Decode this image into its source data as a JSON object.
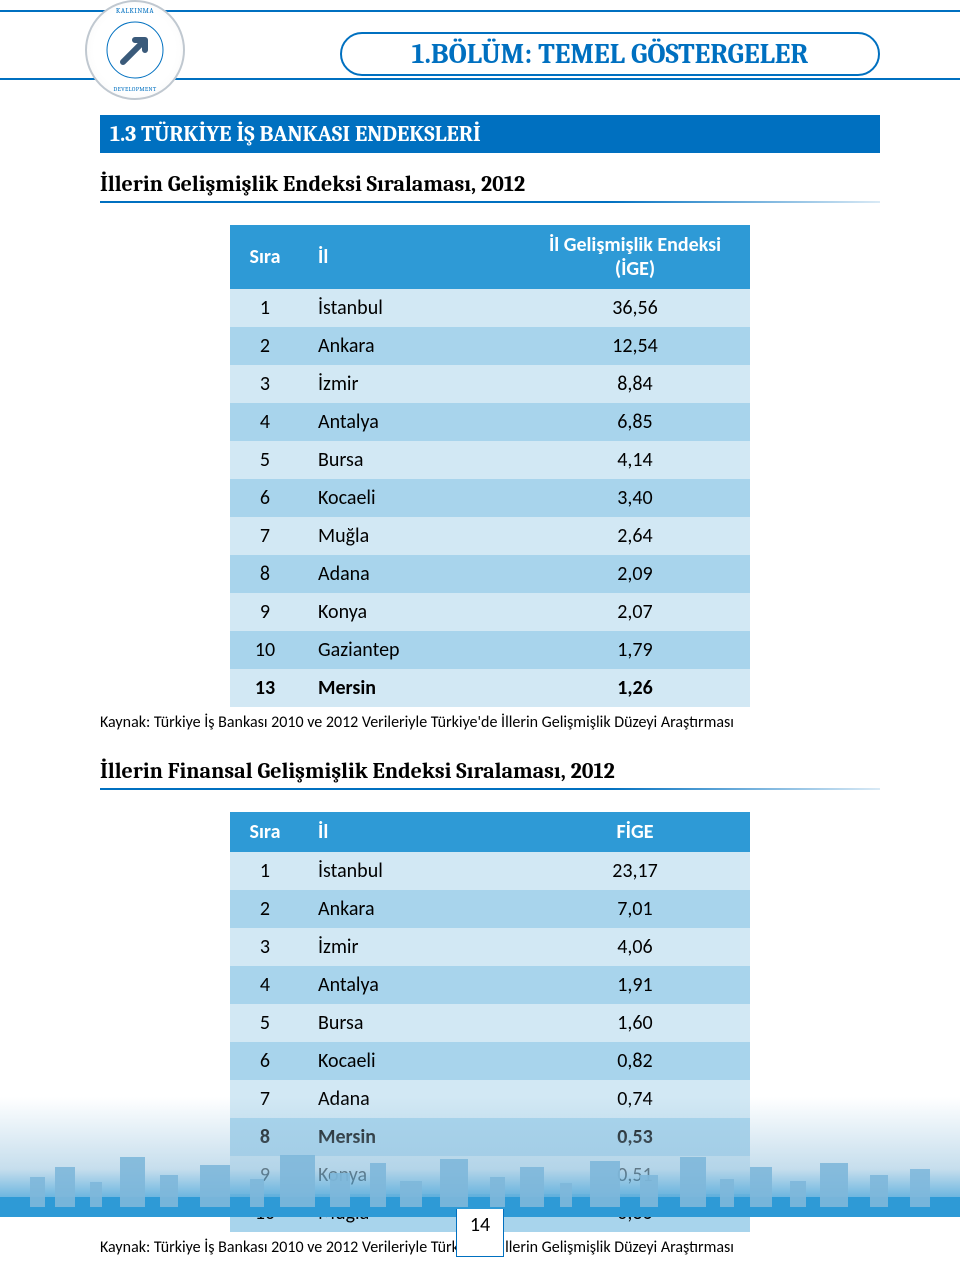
{
  "chapter_title": "1.BÖLÜM: TEMEL GÖSTERGELER",
  "section_title": "1.3 TÜRKİYE İŞ BANKASI ENDEKSLERİ",
  "table1": {
    "heading": "İllerin Gelişmişlik Endeksi Sıralaması, 2012",
    "columns": [
      "Sıra",
      "İl",
      "İl Gelişmişlik Endeksi (İGE)"
    ],
    "rows": [
      {
        "sira": "1",
        "il": "İstanbul",
        "val": "36,56",
        "bold": false
      },
      {
        "sira": "2",
        "il": "Ankara",
        "val": "12,54",
        "bold": false
      },
      {
        "sira": "3",
        "il": "İzmir",
        "val": "8,84",
        "bold": false
      },
      {
        "sira": "4",
        "il": "Antalya",
        "val": "6,85",
        "bold": false
      },
      {
        "sira": "5",
        "il": "Bursa",
        "val": "4,14",
        "bold": false
      },
      {
        "sira": "6",
        "il": "Kocaeli",
        "val": "3,40",
        "bold": false
      },
      {
        "sira": "7",
        "il": "Muğla",
        "val": "2,64",
        "bold": false
      },
      {
        "sira": "8",
        "il": "Adana",
        "val": "2,09",
        "bold": false
      },
      {
        "sira": "9",
        "il": "Konya",
        "val": "2,07",
        "bold": false
      },
      {
        "sira": "10",
        "il": "Gaziantep",
        "val": "1,79",
        "bold": false
      },
      {
        "sira": "13",
        "il": "Mersin",
        "val": "1,26",
        "bold": true
      }
    ],
    "row_colors": {
      "light": "#d2e8f4",
      "dark": "#a8d4ec"
    },
    "header_bg": "#2e9ad6",
    "source": "Kaynak: Türkiye İş Bankası 2010 ve 2012 Verileriyle Türkiye'de İllerin Gelişmişlik Düzeyi Araştırması"
  },
  "table2": {
    "heading": "İllerin Finansal Gelişmişlik Endeksi Sıralaması, 2012",
    "columns": [
      "Sıra",
      "İl",
      "FİGE"
    ],
    "rows": [
      {
        "sira": "1",
        "il": "İstanbul",
        "val": "23,17",
        "bold": false
      },
      {
        "sira": "2",
        "il": "Ankara",
        "val": "7,01",
        "bold": false
      },
      {
        "sira": "3",
        "il": "İzmir",
        "val": "4,06",
        "bold": false
      },
      {
        "sira": "4",
        "il": "Antalya",
        "val": "1,91",
        "bold": false
      },
      {
        "sira": "5",
        "il": "Bursa",
        "val": "1,60",
        "bold": false
      },
      {
        "sira": "6",
        "il": "Kocaeli",
        "val": "0,82",
        "bold": false
      },
      {
        "sira": "7",
        "il": "Adana",
        "val": "0,74",
        "bold": false
      },
      {
        "sira": "8",
        "il": "Mersin",
        "val": "0,53",
        "bold": true
      },
      {
        "sira": "9",
        "il": "Konya",
        "val": "0,51",
        "bold": false
      },
      {
        "sira": "10",
        "il": "Muğla",
        "val": "0,36",
        "bold": false
      }
    ],
    "row_colors": {
      "light": "#d2e8f4",
      "dark": "#a8d4ec"
    },
    "header_bg": "#2e9ad6",
    "source": "Kaynak: Türkiye İş Bankası 2010 ve 2012 Verileriyle Türkiye'de İllerin Gelişmişlik Düzeyi Araştırması"
  },
  "page_number": "14",
  "colors": {
    "primary_blue": "#0070c0",
    "header_blue": "#2e9ad6",
    "row_light": "#d2e8f4",
    "row_dark": "#a8d4ec"
  }
}
